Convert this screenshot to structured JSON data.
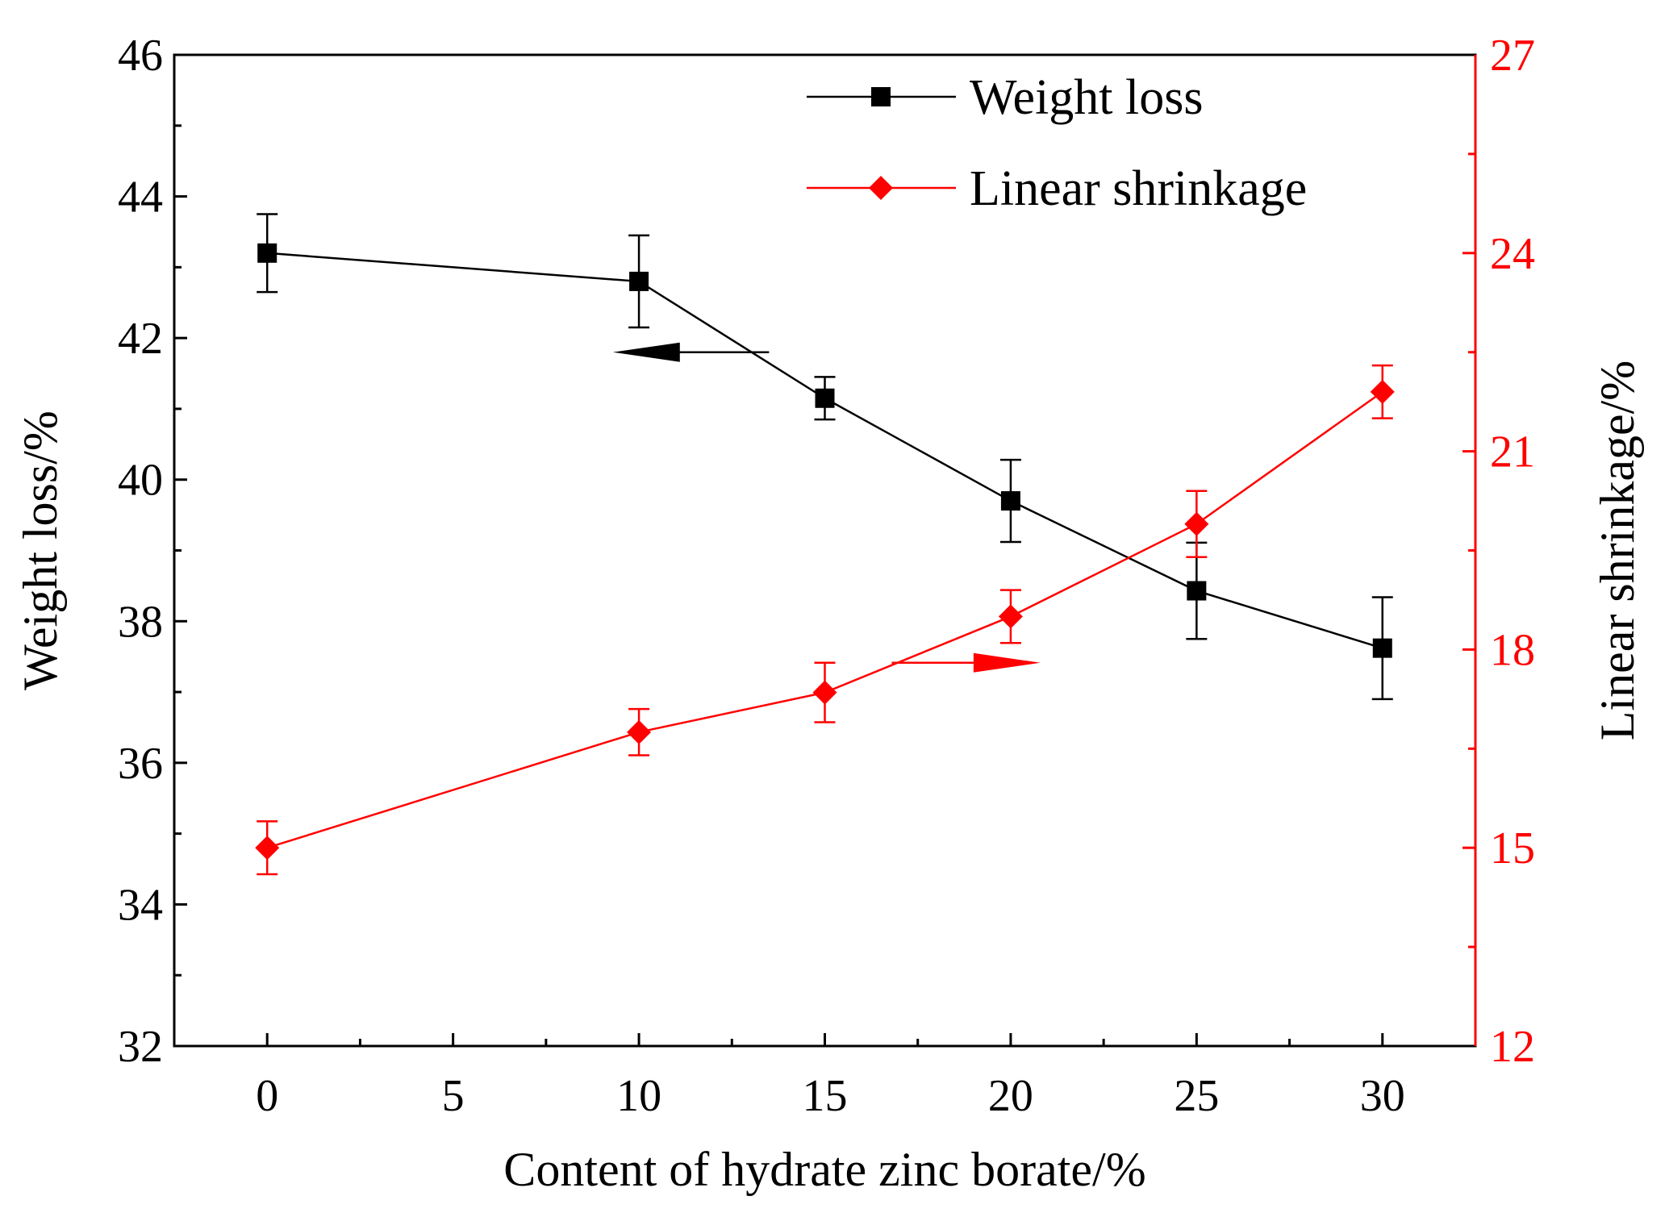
{
  "chart_data": {
    "type": "line",
    "x": [
      0,
      10,
      15,
      20,
      25,
      30
    ],
    "xlabel": "Content of hydrate zinc borate/%",
    "xlim": [
      -2.5,
      32.5
    ],
    "xticks": [
      0,
      5,
      10,
      15,
      20,
      25,
      30
    ],
    "xtick_labels": [
      "0",
      "5",
      "10",
      "15",
      "20",
      "25",
      "30"
    ],
    "left_axis": {
      "label": "Weight loss/%",
      "ylim": [
        32,
        46
      ],
      "ticks": [
        32,
        34,
        36,
        38,
        40,
        42,
        44,
        46
      ],
      "tick_labels": [
        "32",
        "34",
        "36",
        "38",
        "40",
        "42",
        "44",
        "46"
      ],
      "color": "#000000"
    },
    "right_axis": {
      "label": "Linear shrinkage/%",
      "ylim": [
        12,
        27
      ],
      "ticks": [
        12,
        15,
        18,
        21,
        24,
        27
      ],
      "tick_labels": [
        "12",
        "15",
        "18",
        "21",
        "24",
        "27"
      ],
      "color": "#ff0000"
    },
    "series": [
      {
        "name": "Weight loss",
        "axis": "left",
        "marker": "square",
        "color": "#000000",
        "values": [
          43.2,
          42.8,
          41.15,
          39.7,
          38.43,
          37.62
        ],
        "errors": [
          0.55,
          0.65,
          0.3,
          0.58,
          0.68,
          0.72
        ]
      },
      {
        "name": "Linear shrinkage",
        "axis": "right",
        "marker": "diamond",
        "color": "#ff0000",
        "values": [
          15.0,
          16.75,
          17.35,
          18.5,
          19.9,
          21.9
        ],
        "errors": [
          0.4,
          0.35,
          0.45,
          0.4,
          0.5,
          0.4
        ]
      }
    ],
    "annotations": [
      {
        "type": "arrow",
        "direction": "left",
        "points_to": "left axis",
        "series": "Weight loss"
      },
      {
        "type": "arrow",
        "direction": "right",
        "points_to": "right axis",
        "series": "Linear shrinkage"
      }
    ],
    "legend": {
      "position": "top-right",
      "entries": [
        "Weight loss",
        "Linear shrinkage"
      ]
    }
  }
}
